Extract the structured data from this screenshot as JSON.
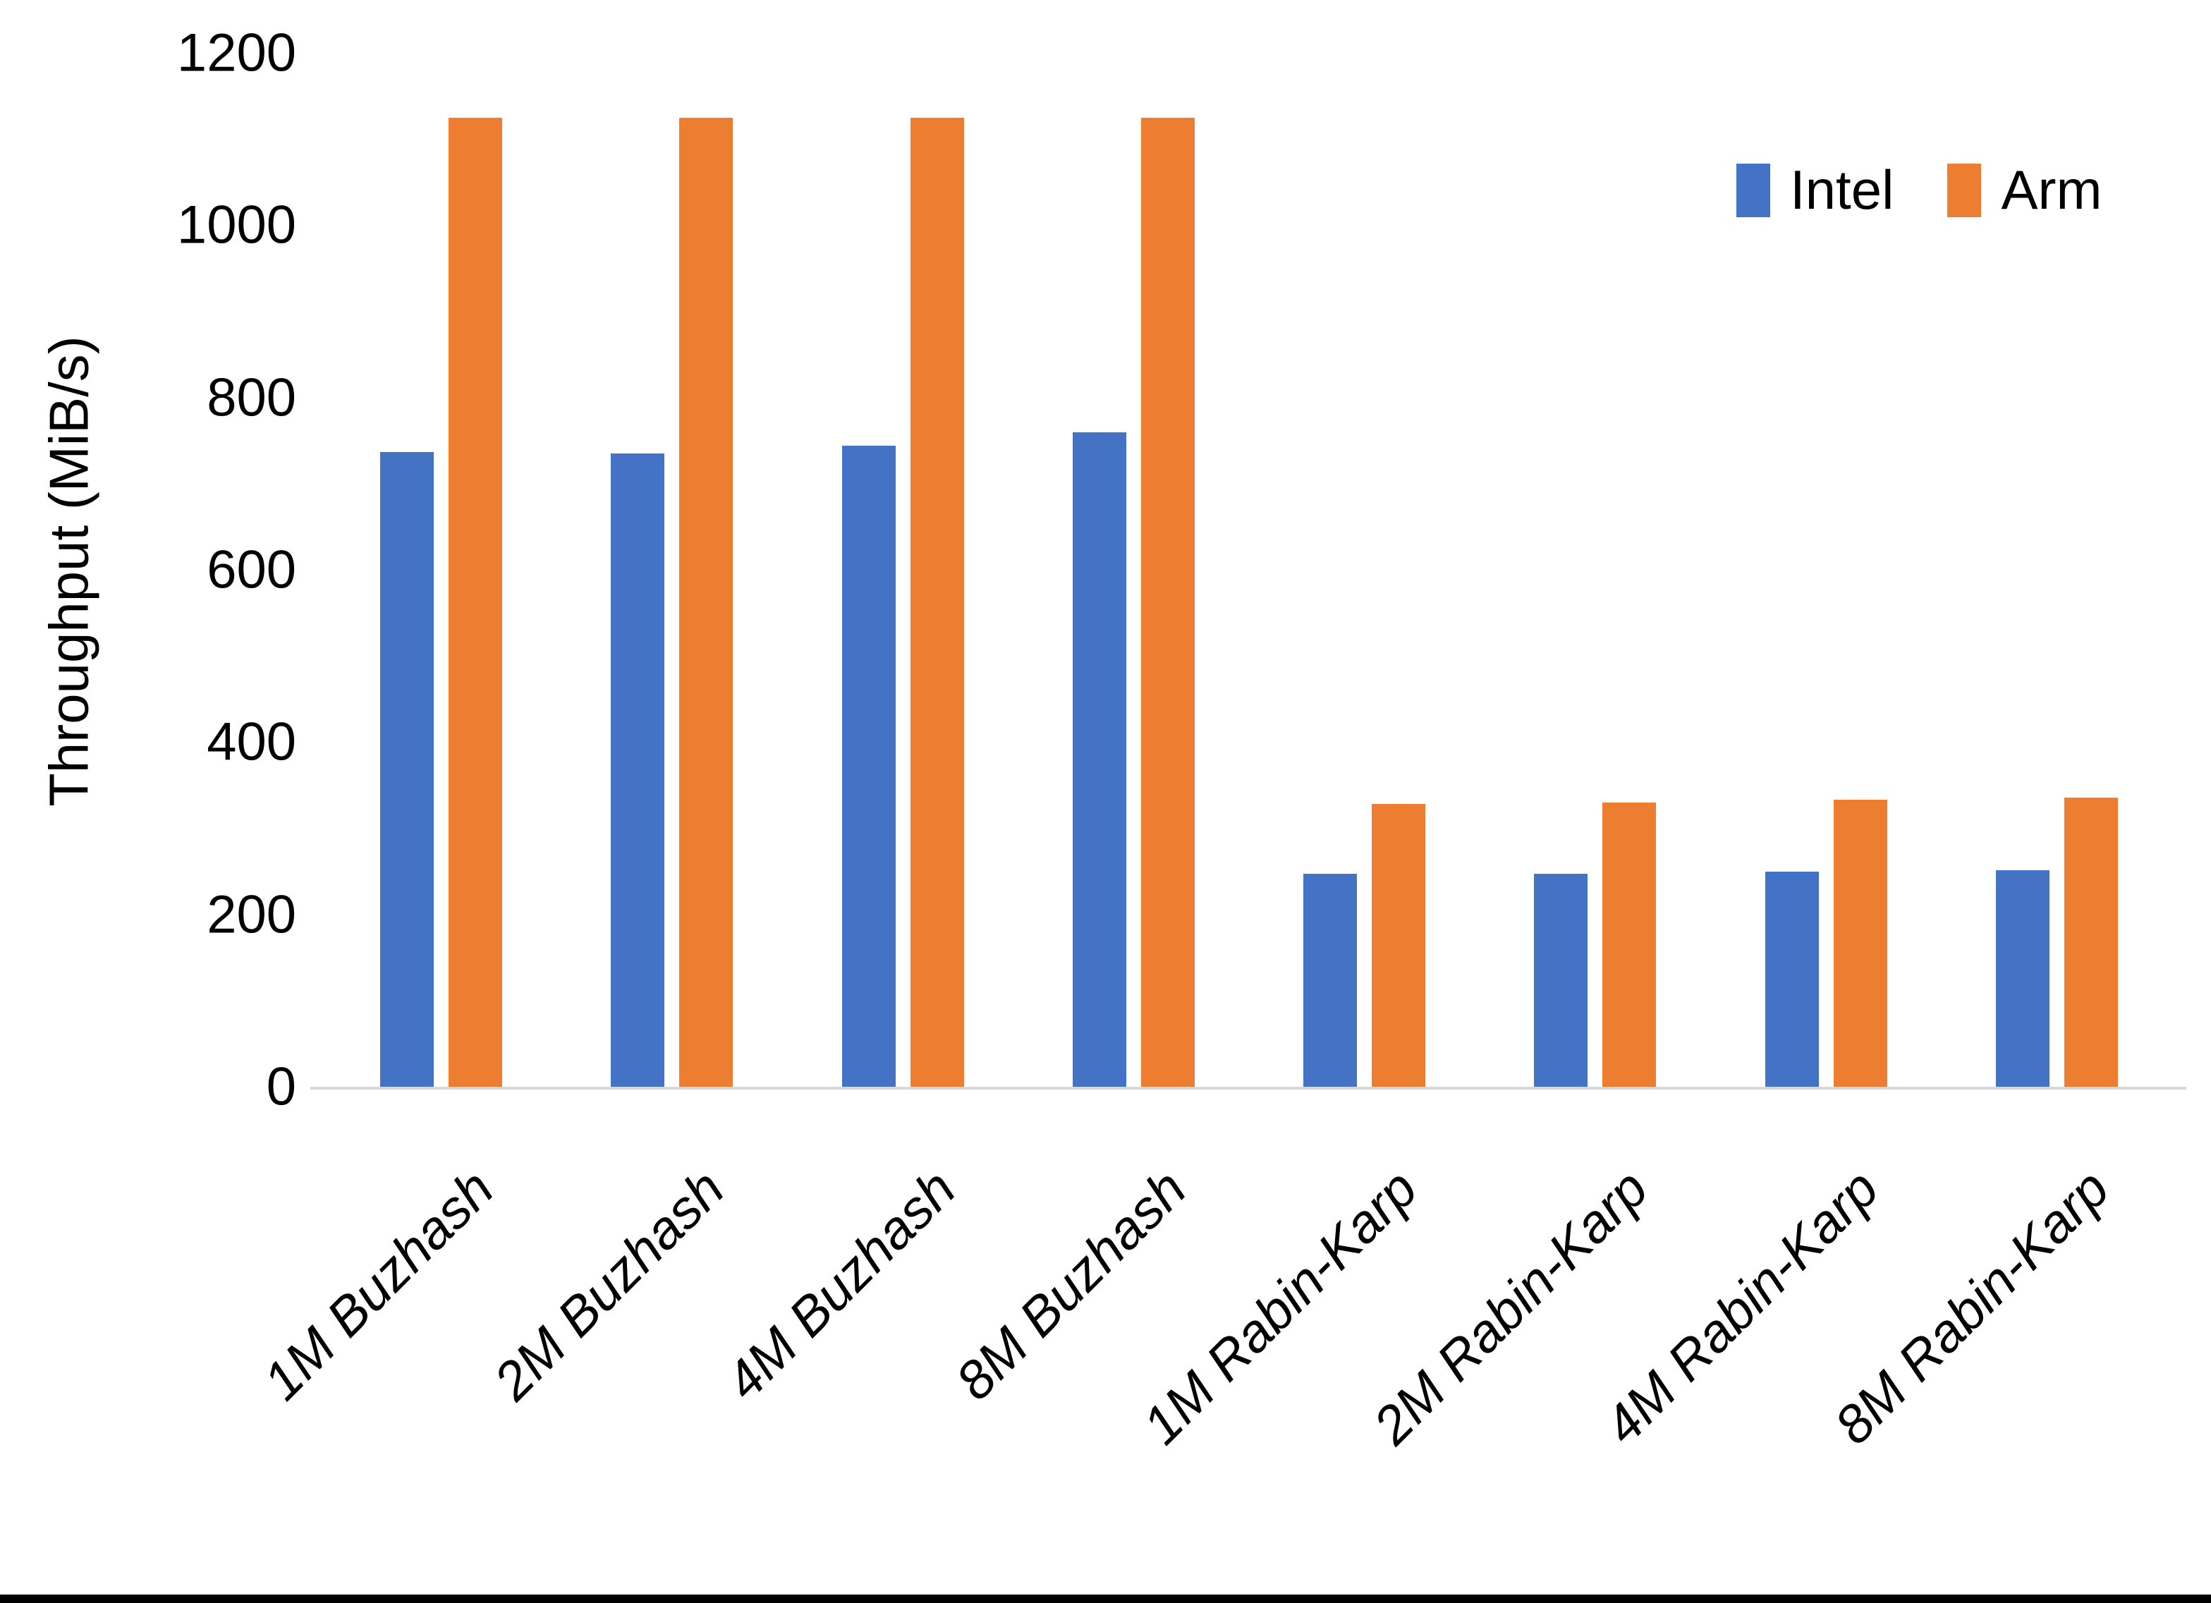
{
  "chart_data": {
    "type": "bar",
    "title": "",
    "xlabel": "",
    "ylabel": "Throughput (MiB/s)",
    "ylim": [
      0,
      1200
    ],
    "yticks": [
      0,
      200,
      400,
      600,
      800,
      1000,
      1200
    ],
    "grid": false,
    "legend_position": "top-right",
    "categories": [
      "1M Buzhash",
      "2M Buzhash",
      "4M Buzhash",
      "8M Buzhash",
      "1M Rabin-Karp",
      "2M Rabin-Karp",
      "4M Rabin-Karp",
      "8M Rabin-Karp"
    ],
    "series": [
      {
        "name": "Intel",
        "color": "#4472C4",
        "values": [
          737,
          735,
          744,
          760,
          247,
          247,
          250,
          251
        ]
      },
      {
        "name": "Arm",
        "color": "#ED7D31",
        "values": [
          1125,
          1125,
          1125,
          1125,
          328,
          330,
          333,
          336
        ]
      }
    ],
    "axis_line_color": "#D9D9D9",
    "text_color": "#000000",
    "background_color": "#FFFFFF",
    "bottom_border_color": "#000000"
  }
}
